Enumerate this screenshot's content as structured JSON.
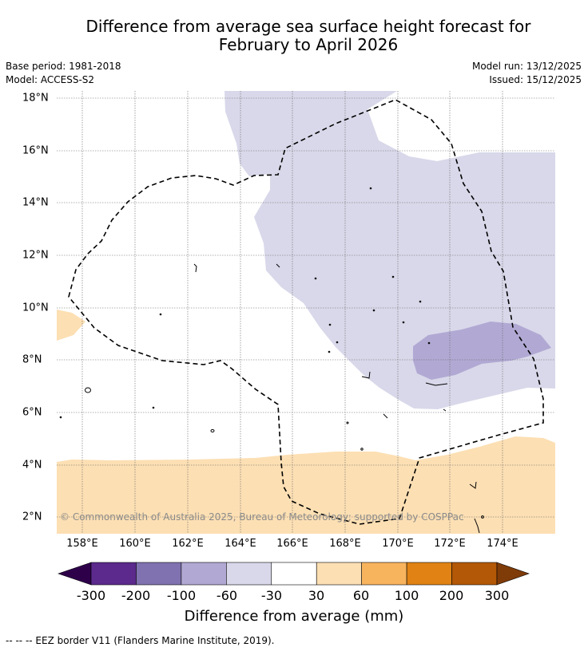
{
  "title_line1": "Difference from average sea surface height forecast for",
  "title_line2": "February to April 2026",
  "base_period": "Base period: 1981-2018",
  "model": "Model: ACCESS-S2",
  "model_run": "Model run: 13/12/2025",
  "issued": "Issued: 15/12/2025",
  "copyright": "© Commonwealth of Australia 2025, Bureau of Meteorology; supported by COSPPac",
  "map": {
    "lon_ticks": [
      "158°E",
      "160°E",
      "162°E",
      "164°E",
      "166°E",
      "168°E",
      "170°E",
      "172°E",
      "174°E"
    ],
    "lat_ticks": [
      "18°N",
      "16°N",
      "14°N",
      "12°N",
      "10°N",
      "8°N",
      "6°N",
      "4°N",
      "2°N"
    ],
    "region_fills": {
      "below_60_to_30": "#d8d8ea",
      "below_100_to_60": "#b1a9d3",
      "above_30_to_60": "#fcdfb3"
    }
  },
  "colorbar": {
    "title": "Difference from average (mm)",
    "ticks": [
      "-300",
      "-200",
      "-100",
      "-60",
      "-30",
      "30",
      "60",
      "100",
      "200",
      "300"
    ],
    "colors": [
      "#5b2a8c",
      "#8072b0",
      "#b1a9d3",
      "#d8d8ea",
      "#ffffff",
      "#fcdfb3",
      "#f8b35d",
      "#e08314",
      "#b35807"
    ],
    "extend_low": "#2e004a",
    "extend_high": "#7f3b08"
  },
  "footnote": "--  --  -- EEZ border V11 (Flanders Marine Institute, 2019)."
}
